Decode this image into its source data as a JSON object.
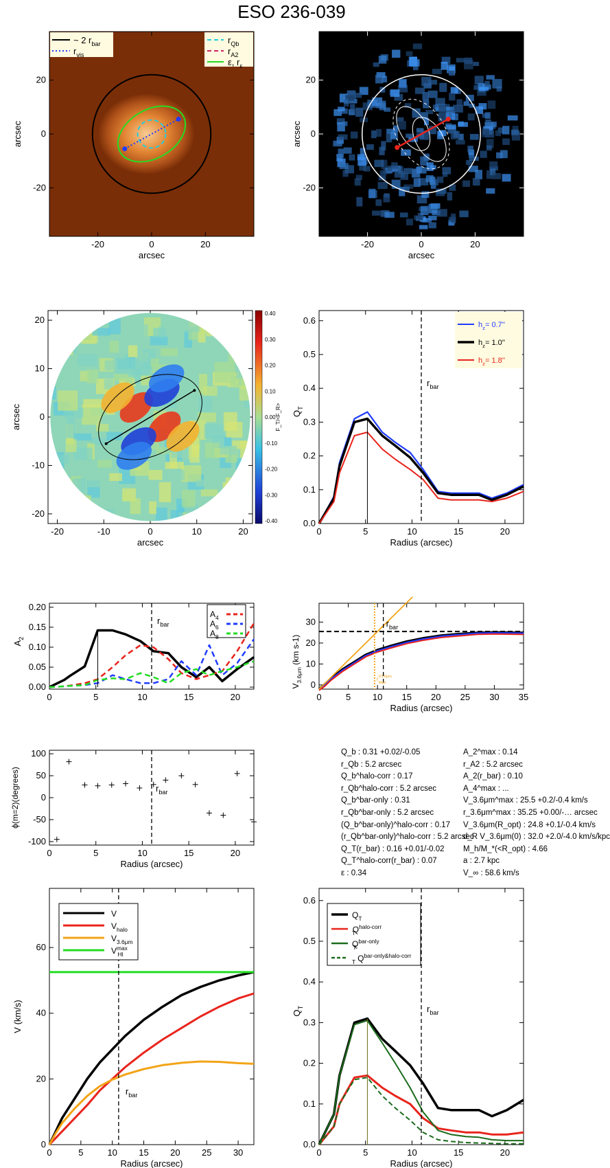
{
  "figure": {
    "title": "ESO 236-039"
  },
  "colors": {
    "image_bg": "#7a2e07",
    "galaxy_core": "#ffd39a",
    "black": "#000000",
    "blue": "#1f3cff",
    "red": "#e8241c",
    "green": "#22dd22",
    "dark_green": "#1a6b1a",
    "orange": "#f2a417",
    "cyan": "#22ccdd",
    "legend_bg": "#fffbe0"
  },
  "panels": {
    "galaxy_image": {
      "xlabel": "arcsec",
      "ylabel": "arcsec",
      "xlim": [
        -38,
        38
      ],
      "ylim": [
        -38,
        38
      ],
      "xticks": [
        -20,
        0,
        20
      ],
      "yticks": [
        -20,
        0,
        20
      ],
      "legend_left": [
        {
          "label": "~ 2 r",
          "sub": "bar",
          "style": "solid",
          "color": "#000000"
        },
        {
          "label": "r",
          "sub": "vis",
          "style": "dotted",
          "color": "#1f3cff"
        }
      ],
      "legend_right": [
        {
          "label": "r",
          "sub": "Qb",
          "style": "dashed",
          "color": "#22ccdd"
        },
        {
          "label": "r",
          "sub": "A2",
          "style": "dashed",
          "color": "#d0206a"
        },
        {
          "label": "ε, r",
          "sub": "ε",
          "style": "solid",
          "color": "#22dd22"
        }
      ],
      "overlays": {
        "bar_circle_radius": 22,
        "qb_circle_radius": 5.2,
        "ellipse": {
          "a": 13.5,
          "b": 9,
          "pa_deg": 30
        },
        "bar_line": [
          [
            -10,
            -5.5
          ],
          [
            10,
            5.5
          ]
        ]
      }
    },
    "force_field_image": {
      "xlabel": "arcsec",
      "ylabel": "arcsec",
      "xlim": [
        -38,
        38
      ],
      "ylim": [
        -38,
        38
      ],
      "xticks": [
        -20,
        0,
        20
      ],
      "yticks": [
        -20,
        0,
        20
      ],
      "overlays": {
        "circle_radius": 22,
        "bar_line": [
          [
            -9,
            -5
          ],
          [
            10,
            5.5
          ]
        ]
      }
    },
    "force_map": {
      "xlabel": "arcsec",
      "ylabel": "arcsec",
      "xlim": [
        -22,
        22
      ],
      "ylim": [
        -22,
        22
      ],
      "xticks": [
        -20,
        -10,
        0,
        10,
        20
      ],
      "yticks": [
        -20,
        -10,
        0,
        10,
        20
      ],
      "colorbar": {
        "ticks": [
          "0.40",
          "0.30",
          "0.20",
          "0.10",
          "0.00",
          "-0.10",
          "-0.20",
          "-0.30",
          "-0.40"
        ],
        "label": "F_T/<F_R>"
      },
      "ellipse": {
        "a": 12,
        "b": 8,
        "pa_deg": 30
      },
      "bar_line": [
        [
          -9.5,
          -5.5
        ],
        [
          9.5,
          5.5
        ]
      ]
    },
    "qt_profile": {
      "xlabel": "Radius (arcsec)",
      "ylabel": "Q_T",
      "xlim": [
        0,
        22
      ],
      "ylim": [
        0,
        0.63
      ],
      "xticks": [
        0,
        5,
        10,
        15,
        20
      ],
      "yticks": [
        "0.0",
        "0.1",
        "0.2",
        "0.3",
        "0.4",
        "0.5",
        "0.6"
      ],
      "rbar": 11,
      "rbar_label": "r",
      "rbar_sub": "bar",
      "qb_marker_r": 5.2,
      "legend": [
        {
          "prefix": "h",
          "sub": "z",
          "value": "=   0.7''",
          "color": "#1f3cff"
        },
        {
          "prefix": "h",
          "sub": "z",
          "value": "=   1.0''",
          "color": "#000000"
        },
        {
          "prefix": "h",
          "sub": "z",
          "value": "=   1.8''",
          "color": "#e8241c"
        }
      ]
    },
    "amplitude_profile": {
      "xlabel": "",
      "ylabel": "A",
      "ylabel_sub": "2",
      "xlim": [
        0,
        22
      ],
      "ylim": [
        -0.005,
        0.21
      ],
      "xticks": [
        0,
        5,
        10,
        15,
        20
      ],
      "yticks": [
        "0.00",
        "0.05",
        "0.10",
        "0.15",
        "0.20"
      ],
      "rbar": 11,
      "rbar_label": "r",
      "rbar_sub": "bar",
      "legend": [
        {
          "label": "A",
          "sub": "4",
          "color": "#e8241c"
        },
        {
          "label": "A",
          "sub": "6",
          "color": "#1f3cff"
        },
        {
          "label": "A",
          "sub": "8",
          "color": "#22dd22"
        }
      ]
    },
    "rotation_curve_small": {
      "xlabel": "Radius (arcsec)",
      "ylabel": "V",
      "ylabel_sub": "3.6μm",
      "ylabel_unit": " (km s",
      "ylabel_sup": "-1",
      "ylabel_end": ")",
      "xlim": [
        0,
        35
      ],
      "ylim": [
        -2,
        39
      ],
      "xticks": [
        0,
        5,
        10,
        15,
        20,
        25,
        30,
        35
      ],
      "yticks": [
        0,
        10,
        20,
        30
      ],
      "rbar": 11,
      "rbar_label": "r",
      "rbar_sub": "bar",
      "rmax_label": "r",
      "rmax_sub": "Max",
      "rmax_sup": "V3.6μm",
      "rmax": 9.5,
      "vmax": 25.5
    },
    "phase_profile": {
      "xlabel": "Radius (arcsec)",
      "ylabel": "ϕ(m=2)(degrees)",
      "xlim": [
        0,
        22
      ],
      "ylim": [
        -108,
        108
      ],
      "xticks": [
        0,
        5,
        10,
        15,
        20
      ],
      "yticks": [
        -100,
        -50,
        0,
        50,
        100
      ],
      "rbar": 11,
      "rbar_label": "r",
      "rbar_sub": "bar"
    },
    "rotation_curve_large": {
      "xlabel": "Radius (arcsec)",
      "ylabel": "V (km/s)",
      "xlim": [
        0,
        32.5
      ],
      "ylim": [
        0,
        78
      ],
      "xticks": [
        0,
        5,
        10,
        15,
        20,
        25,
        30
      ],
      "yticks": [
        0,
        20,
        40,
        60
      ],
      "rbar": 11,
      "rbar_label": "r",
      "rbar_sub": "bar",
      "legend": [
        {
          "label": "V",
          "sub": "",
          "sup": "",
          "color": "#000000"
        },
        {
          "label": "V",
          "sub": "halo",
          "sup": "",
          "color": "#e8241c"
        },
        {
          "label": "V",
          "sub": "3.6μm",
          "sup": "",
          "color": "#f2a417"
        },
        {
          "label": "V",
          "sub": "HI",
          "sup": "max",
          "color": "#22dd22"
        }
      ]
    },
    "qt_corrections": {
      "xlabel": "Radius (arcsec)",
      "ylabel": "Q_T",
      "xlim": [
        0,
        22
      ],
      "ylim": [
        0,
        0.63
      ],
      "xticks": [
        0,
        5,
        10,
        15,
        20
      ],
      "yticks": [
        "0.0",
        "0.1",
        "0.2",
        "0.3",
        "0.4",
        "0.5",
        "0.6"
      ],
      "rbar": 11,
      "rbar_label": "r",
      "rbar_sub": "bar",
      "qb_marker_r": 5.2,
      "legend": [
        {
          "label": "Q",
          "sub": "T",
          "sup": "",
          "color": "#000000",
          "style": "solid"
        },
        {
          "label": "Q",
          "sub": "T",
          "sup": "halo-corr",
          "color": "#e8241c",
          "style": "solid"
        },
        {
          "label": "Q",
          "sub": "T",
          "sup": "bar-only",
          "color": "#1a6b1a",
          "style": "solid"
        },
        {
          "label": "Q",
          "sub": "T",
          "sup": "bar-only&halo-corr",
          "color": "#1a6b1a",
          "style": "dashed"
        }
      ]
    }
  },
  "stats": {
    "left": [
      "Q_b :  0.31 +0.02/-0.05",
      "r_Qb :   5.2   arcsec",
      "Q_b^halo-corr :  0.17",
      "r_Qb^halo-corr :   5.2 arcsec",
      "Q_b^bar-only :   0.31",
      "r_Qb^bar-only :   5.2 arcsec",
      "(Q_b^bar-only)^halo-corr :  0.17",
      "(r_Qb^bar-only)^halo-corr :     5.2 arcsec",
      "Q_T(r_bar) :  0.16 +0.01/-0.02",
      "Q_T^halo-corr(r_bar) :  0.07",
      "ε :  0.34"
    ],
    "right": [
      "A_2^max :  0.14",
      "r_A2 :    5.2 arcsec",
      "A_2(r_bar) :  0.10",
      "A_4^max : ...",
      "V_3.6μm^max :   25.5 +0.2/-0.4 km/s",
      "r_3.6μm^max :   35.25 +0.00/-… arcsec",
      "V_3.6μm(R_opt) :   24.8 +0.1/-0.4 km/s",
      "d_R V_3.6μm(0) :  32.0 +2.0/-4.0 km/s/kpc",
      "M_h/M_*(<R_opt) :   4.66",
      "a :    2.7 kpc",
      "V_∞ :   58.6 km/s"
    ]
  },
  "chart_data": [
    {
      "type": "line",
      "title": "",
      "xlabel": "Radius (arcsec)",
      "ylabel": "Q_T",
      "ylim": [
        0,
        0.63
      ],
      "x": [
        0,
        1.6,
        2.2,
        3.8,
        5.2,
        6.8,
        8.2,
        9.8,
        11.2,
        12.8,
        14.2,
        15.8,
        17.2,
        18.6,
        20.2,
        22
      ],
      "series": [
        {
          "name": "h_z=0.7''",
          "values": [
            0,
            0.08,
            0.18,
            0.31,
            0.33,
            0.27,
            0.24,
            0.21,
            0.16,
            0.095,
            0.09,
            0.09,
            0.09,
            0.075,
            0.09,
            0.115
          ]
        },
        {
          "name": "h_z=1.0''",
          "values": [
            0,
            0.075,
            0.17,
            0.3,
            0.31,
            0.26,
            0.23,
            0.195,
            0.15,
            0.09,
            0.085,
            0.085,
            0.085,
            0.07,
            0.085,
            0.11
          ]
        },
        {
          "name": "h_z=1.8''",
          "values": [
            0,
            0.065,
            0.15,
            0.26,
            0.27,
            0.22,
            0.19,
            0.16,
            0.13,
            0.075,
            0.07,
            0.07,
            0.07,
            0.065,
            0.075,
            0.095
          ]
        }
      ]
    },
    {
      "type": "line",
      "title": "",
      "xlabel": "",
      "ylabel": "A_2",
      "ylim": [
        -0.005,
        0.21
      ],
      "x": [
        0,
        1.6,
        2.2,
        3.8,
        5.2,
        6.8,
        8.2,
        9.8,
        11.2,
        12.8,
        14.2,
        15.8,
        17.2,
        18.6,
        20.2,
        22
      ],
      "series": [
        {
          "name": "A_2",
          "values": [
            0,
            0.018,
            0.028,
            0.052,
            0.142,
            0.142,
            0.132,
            0.115,
            0.09,
            0.085,
            0.05,
            0.025,
            0.05,
            0.015,
            0.045,
            0.075
          ]
        },
        {
          "name": "A_4",
          "values": [
            0,
            0.002,
            0.004,
            0.01,
            0.02,
            0.05,
            0.08,
            0.105,
            0.1,
            0.07,
            0.035,
            0.02,
            0.03,
            0.04,
            0.09,
            0.16
          ]
        },
        {
          "name": "A_6",
          "values": [
            0,
            0.002,
            0.003,
            0.005,
            0.01,
            0.03,
            0.02,
            0.01,
            0.01,
            0.02,
            0.065,
            0.03,
            0.105,
            0.03,
            0.06,
            0.12
          ]
        },
        {
          "name": "A_8",
          "values": [
            0,
            0.002,
            0.003,
            0.005,
            0.018,
            0.022,
            0.02,
            0.035,
            0.025,
            0.01,
            0.035,
            0.045,
            0.03,
            0.04,
            0.05,
            0.065
          ]
        }
      ]
    },
    {
      "type": "line",
      "title": "",
      "xlabel": "Radius (arcsec)",
      "ylabel": "V_3.6μm (km s^-1)",
      "ylim": [
        -2,
        39
      ],
      "x": [
        0,
        1,
        2,
        4,
        6,
        8,
        10,
        12,
        15,
        18,
        21,
        24,
        27,
        30,
        35
      ],
      "series": [
        {
          "name": "",
          "values": [
            -2,
            0.5,
            3,
            7.5,
            11,
            14.5,
            16.8,
            18.5,
            20.8,
            22.5,
            23.7,
            24.4,
            25,
            25.2,
            25
          ]
        },
        {
          "name": "",
          "values": [
            -2,
            0,
            2.7,
            7,
            10.5,
            14,
            16.3,
            18,
            20.3,
            22,
            23.3,
            24,
            24.7,
            24.9,
            24.7
          ]
        }
      ]
    },
    {
      "type": "scatter",
      "title": "",
      "xlabel": "Radius (arcsec)",
      "ylabel": "ϕ(m=2)(degrees)",
      "ylim": [
        -108,
        108
      ],
      "x": [
        0.8,
        2.1,
        3.8,
        5.2,
        6.7,
        8.2,
        9.7,
        11.2,
        12.5,
        14.2,
        15.7,
        17.2,
        18.7,
        20.2,
        22
      ],
      "series": [
        {
          "name": "",
          "values": [
            -95,
            82,
            29,
            27,
            29,
            32,
            22,
            30,
            40,
            50,
            30,
            -35,
            -40,
            55,
            -55
          ]
        }
      ]
    },
    {
      "type": "line",
      "title": "",
      "xlabel": "Radius (arcsec)",
      "ylabel": "V (km/s)",
      "ylim": [
        0,
        78
      ],
      "x": [
        0,
        1,
        2,
        4,
        6,
        8,
        10,
        12,
        15,
        18,
        21,
        24,
        27,
        30,
        32.5
      ],
      "series": [
        {
          "name": "V",
          "values": [
            0,
            4,
            8,
            14,
            20,
            25,
            29,
            33,
            38,
            42,
            45.5,
            48,
            50,
            51.5,
            52.5
          ]
        },
        {
          "name": "V_halo",
          "values": [
            0,
            2,
            4,
            8,
            12,
            16.5,
            20,
            23.5,
            28,
            32,
            35.5,
            39,
            42,
            44.5,
            46
          ]
        },
        {
          "name": "V_3.6μm",
          "values": [
            0,
            3.5,
            6.5,
            11,
            14.8,
            17.8,
            19.8,
            21.3,
            23,
            24.2,
            24.9,
            25.3,
            25.2,
            24.8,
            24.6
          ]
        },
        {
          "name": "V_HI^max",
          "values": [
            52.5,
            52.5,
            52.5,
            52.5,
            52.5,
            52.5,
            52.5,
            52.5,
            52.5,
            52.5,
            52.5,
            52.5,
            52.5,
            52.5,
            52.5
          ]
        }
      ]
    },
    {
      "type": "line",
      "title": "",
      "xlabel": "Radius (arcsec)",
      "ylabel": "Q_T",
      "ylim": [
        0,
        0.63
      ],
      "x": [
        0,
        1.6,
        2.2,
        3.8,
        5.2,
        6.8,
        8.2,
        9.8,
        11.2,
        12.8,
        14.2,
        15.8,
        17.2,
        18.6,
        20.2,
        22
      ],
      "series": [
        {
          "name": "Q_T",
          "values": [
            0,
            0.075,
            0.17,
            0.3,
            0.31,
            0.26,
            0.23,
            0.195,
            0.15,
            0.09,
            0.085,
            0.085,
            0.085,
            0.07,
            0.085,
            0.11
          ]
        },
        {
          "name": "Q_T^halo-corr",
          "values": [
            0,
            0.045,
            0.1,
            0.165,
            0.17,
            0.14,
            0.12,
            0.1,
            0.065,
            0.04,
            0.035,
            0.03,
            0.03,
            0.025,
            0.025,
            0.03
          ]
        },
        {
          "name": "Q_T^bar-only",
          "values": [
            0,
            0.075,
            0.17,
            0.295,
            0.305,
            0.25,
            0.2,
            0.14,
            0.08,
            0.035,
            0.025,
            0.02,
            0.018,
            0.012,
            0.01,
            0.01
          ]
        },
        {
          "name": "Q_T^bar-only&halo-corr",
          "values": [
            0,
            0.045,
            0.1,
            0.16,
            0.165,
            0.12,
            0.09,
            0.06,
            0.03,
            0.012,
            0.008,
            0.005,
            0.004,
            0.003,
            0.002,
            0.002
          ]
        }
      ]
    }
  ]
}
